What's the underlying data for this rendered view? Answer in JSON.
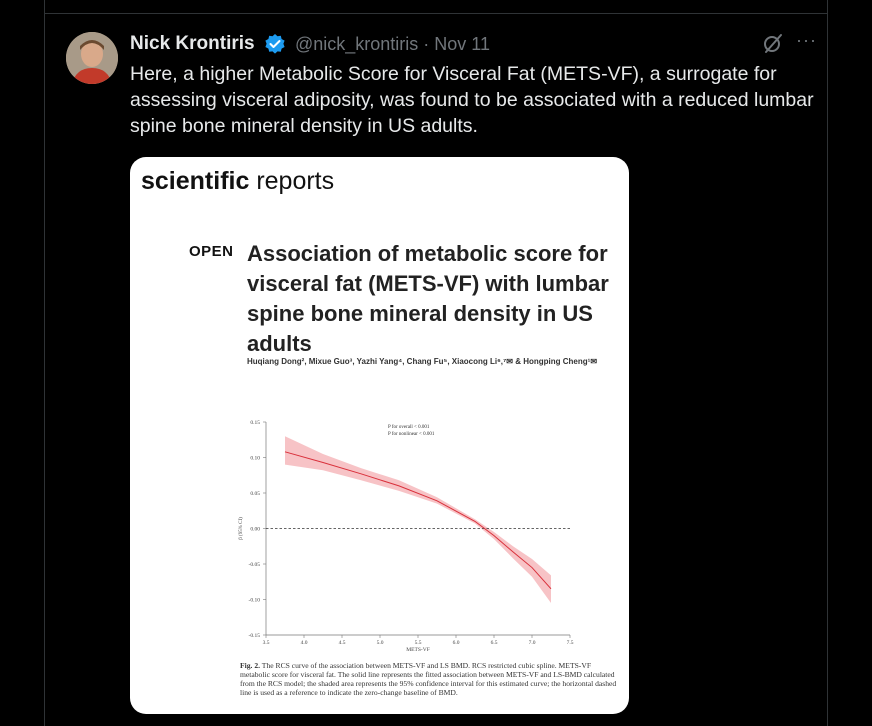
{
  "tweet": {
    "author_name": "Nick Krontiris",
    "handle_and_date": "@nick_krontiris · Nov 11",
    "more_label": "···",
    "text": "Here, a higher Metabolic Score for Visceral Fat (METS-VF), a surrogate for assessing visceral adiposity, was found to be associated with a reduced lumbar spine bone mineral density in US adults.",
    "icons": [
      "verified-badge-icon",
      "grok-icon",
      "more-icon",
      "avatar"
    ]
  },
  "paper": {
    "journal_bold": "scientific",
    "journal_light": " reports",
    "open_label": "OPEN",
    "title": "Association of metabolic score for visceral fat (METS-VF) with lumbar spine bone mineral density in US adults",
    "authors": "Huqiang Dong², Mixue Guo³, Yazhi Yang⁴, Chang Fu⁵, Xiaocong Li⁶,⁷✉ & Hongping Cheng¹✉",
    "caption_label": "Fig. 2.",
    "caption_text": " The RCS curve of the association between METS-VF and LS BMD. RCS restricted cubic spline. METS-VF metabolic score for visceral fat. The solid line represents the fitted association between METS-VF and LS-BMD calculated from the RCS model; the shaded area represents the 95% confidence interval for this estimated curve; the horizontal dashed line is used as a reference to indicate the zero-change baseline of BMD."
  },
  "chart_data": {
    "type": "line",
    "xlabel": "METS-VF",
    "ylabel": "β (95% CI)",
    "xlim": [
      3.5,
      7.5
    ],
    "ylim": [
      -0.15,
      0.15
    ],
    "x_ticks": [
      "3.5",
      "4.0",
      "4.5",
      "5.0",
      "5.5",
      "6.0",
      "6.5",
      "7.0",
      "7.5"
    ],
    "y_ticks": [
      "0.15",
      "0.10",
      "0.05",
      "0.00",
      "-0.05",
      "-0.10",
      "-0.15"
    ],
    "annotation_1": "P for overall < 0.001",
    "annotation_2": "P for nonlinear < 0.001",
    "reference_line_y": 0,
    "x": [
      3.75,
      4.25,
      4.75,
      5.25,
      5.75,
      6.25,
      6.5,
      6.75,
      7.0,
      7.25
    ],
    "y": [
      0.108,
      0.093,
      0.077,
      0.06,
      0.039,
      0.01,
      -0.01,
      -0.033,
      -0.055,
      -0.085
    ],
    "ci_lower": [
      0.09,
      0.082,
      0.068,
      0.053,
      0.035,
      0.007,
      -0.015,
      -0.042,
      -0.068,
      -0.105
    ],
    "ci_upper": [
      0.13,
      0.105,
      0.085,
      0.068,
      0.044,
      0.013,
      -0.005,
      -0.025,
      -0.043,
      -0.066
    ],
    "line_color": "#d9303b",
    "band_color": "#f6b8bc"
  }
}
